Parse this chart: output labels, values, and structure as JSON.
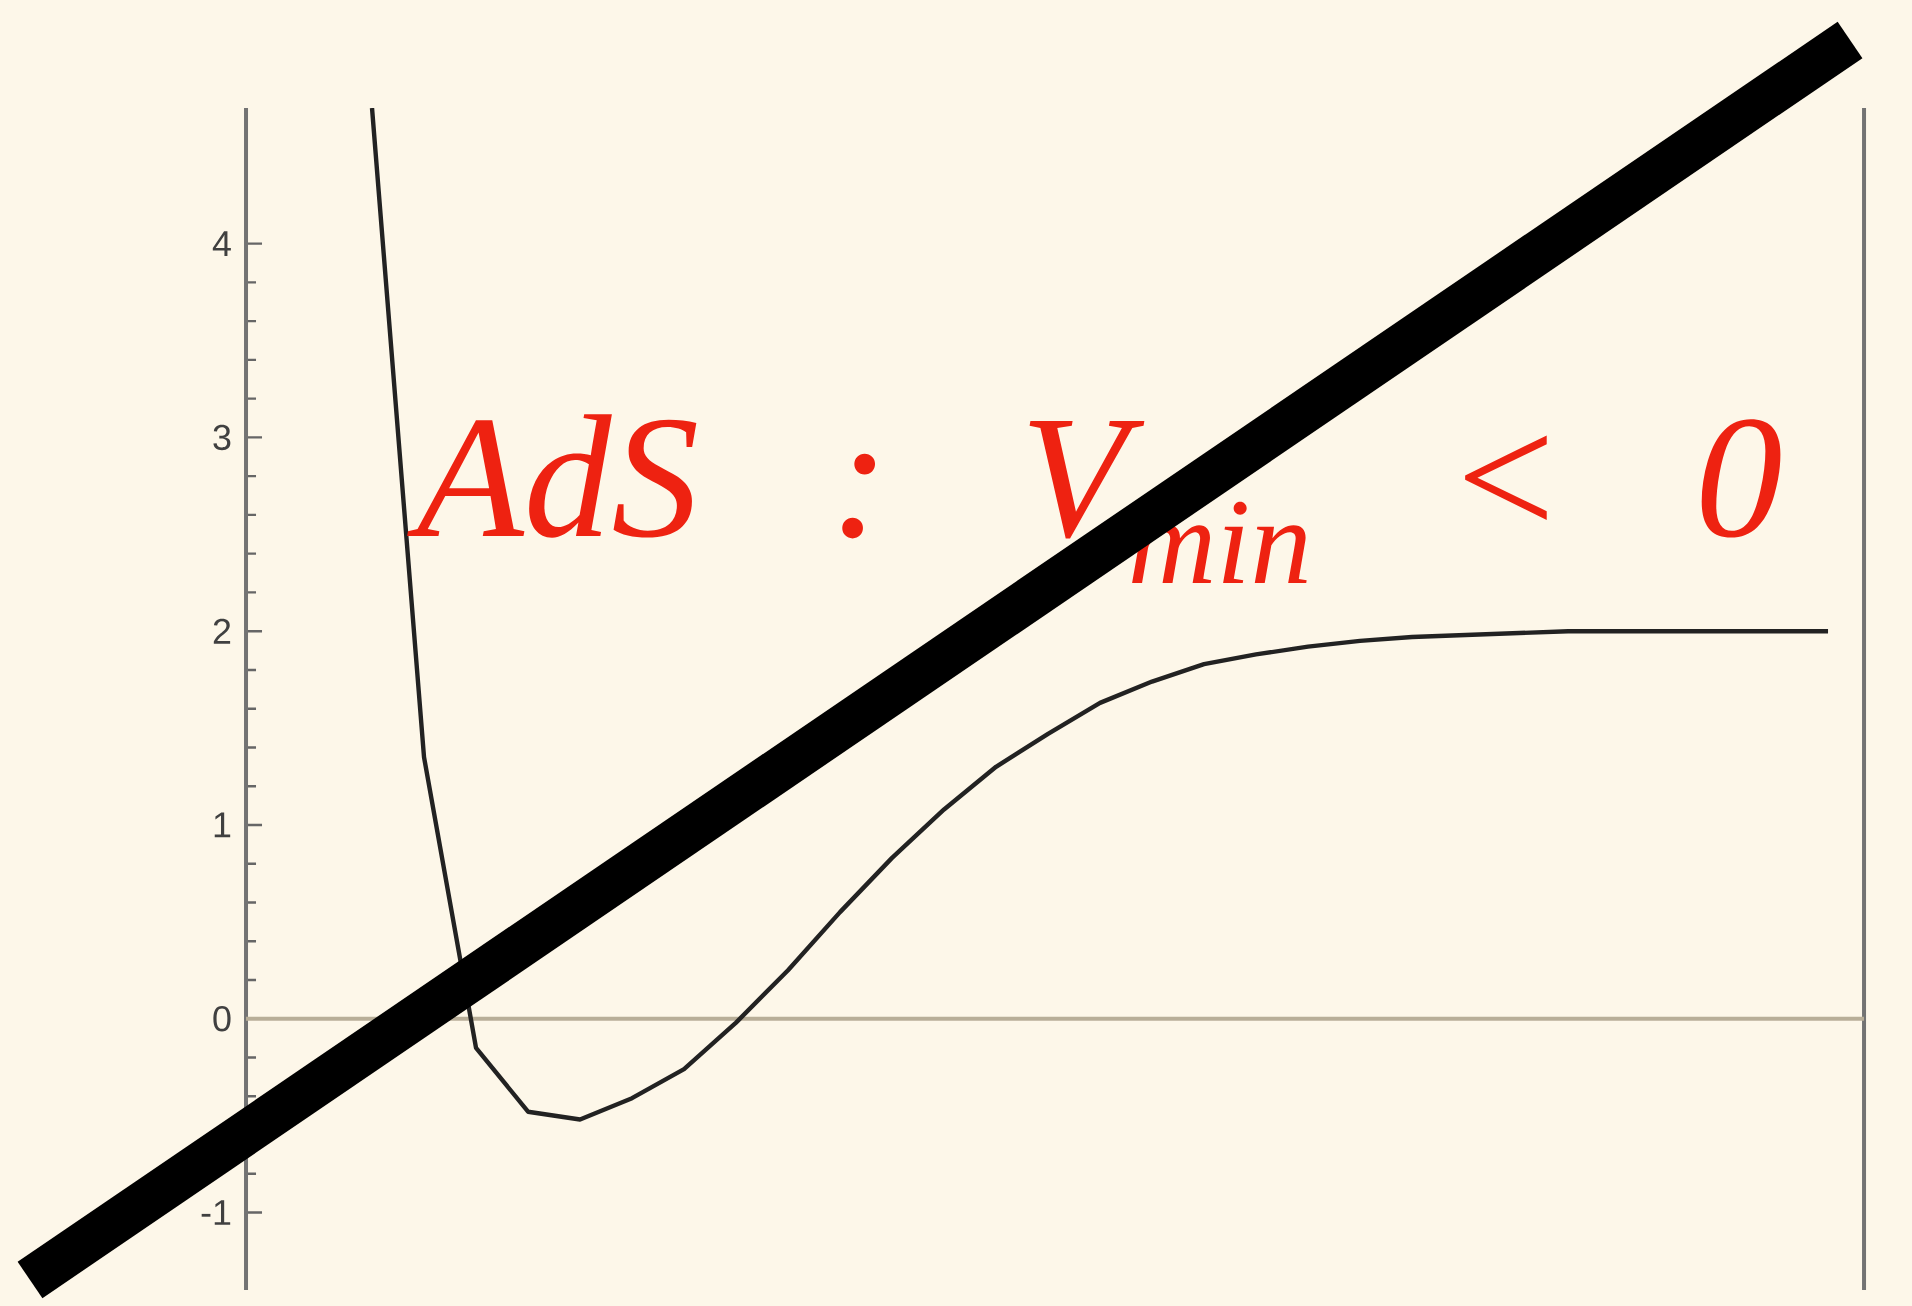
{
  "chart_data": {
    "type": "line",
    "categories": [
      null,
      null,
      null,
      null,
      null,
      null,
      null,
      null,
      null,
      null,
      null,
      null,
      null,
      null,
      null,
      null,
      null,
      null,
      null,
      null,
      null,
      null,
      null,
      null,
      null,
      null,
      null,
      null,
      null
    ],
    "values": [
      4.7,
      1.35,
      -0.15,
      -0.48,
      -0.52,
      -0.41,
      -0.26,
      -0.02,
      0.25,
      0.55,
      0.83,
      1.08,
      1.3,
      1.47,
      1.63,
      1.74,
      1.83,
      1.88,
      1.92,
      1.95,
      1.97,
      1.98,
      1.99,
      2,
      2,
      2,
      2,
      2,
      2
    ],
    "color": "#222222",
    "ylim": [
      -1.4,
      4.7
    ],
    "yticks": [
      -1,
      0,
      1,
      2,
      3,
      4
    ],
    "ref_lines": [
      {
        "axis": "y",
        "value": 0,
        "color": "#b8ae98"
      }
    ],
    "annotations": [
      "AdS : V$_{min}$ < 0"
    ]
  }
}
